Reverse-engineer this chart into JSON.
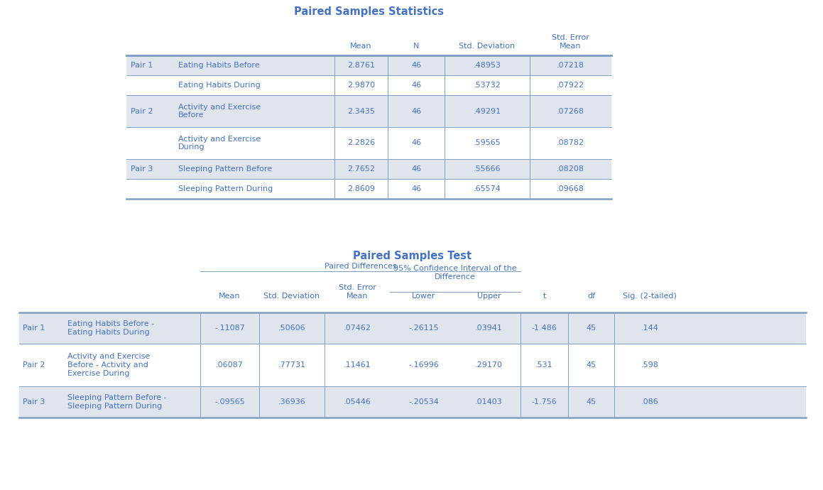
{
  "title1": "Paired Samples Statistics",
  "title2": "Paired Samples Test",
  "bg_color": "#ffffff",
  "text_color": "#4472C4",
  "shaded_color": "#E0E4EC",
  "white_color": "#ffffff",
  "border_color": "#7F9FC6",
  "thick_lw": 1.8,
  "thin_lw": 0.7,
  "stats_table": {
    "rows": [
      {
        "pair": "Pair 1",
        "label": "Eating Habits Before",
        "mean": "2.8761",
        "n": "46",
        "std_dev": ".48953",
        "std_err": ".07218",
        "shaded": true,
        "nlines": 1
      },
      {
        "pair": "",
        "label": "Eating Habits During",
        "mean": "2.9870",
        "n": "46",
        "std_dev": ".53732",
        "std_err": ".07922",
        "shaded": false,
        "nlines": 1
      },
      {
        "pair": "Pair 2",
        "label": "Activity and Exercise\nBefore",
        "mean": "2.3435",
        "n": "46",
        "std_dev": ".49291",
        "std_err": ".07268",
        "shaded": true,
        "nlines": 2
      },
      {
        "pair": "",
        "label": "Activity and Exercise\nDuring",
        "mean": "2.2826",
        "n": "46",
        "std_dev": ".59565",
        "std_err": ".08782",
        "shaded": false,
        "nlines": 2
      },
      {
        "pair": "Pair 3",
        "label": "Sleeping Pattern Before",
        "mean": "2.7652",
        "n": "46",
        "std_dev": ".55666",
        "std_err": ".08208",
        "shaded": true,
        "nlines": 1
      },
      {
        "pair": "",
        "label": "Sleeping Pattern During",
        "mean": "2.8609",
        "n": "46",
        "std_dev": ".65574",
        "std_err": ".09668",
        "shaded": false,
        "nlines": 1
      }
    ]
  },
  "test_table": {
    "rows": [
      {
        "pair": "Pair 1",
        "label": "Eating Habits Before -\nEating Habits During",
        "mean": "-.11087",
        "std_dev": ".50606",
        "std_err": ".07462",
        "lower": "-.26115",
        "upper": ".03941",
        "t": "-1.486",
        "df": "45",
        "sig": ".144",
        "shaded": true,
        "nlines": 2
      },
      {
        "pair": "Pair 2",
        "label": "Activity and Exercise\nBefore - Activity and\nExercise During",
        "mean": ".06087",
        "std_dev": ".77731",
        "std_err": ".11461",
        "lower": "-.16996",
        "upper": ".29170",
        "t": ".531",
        "df": "45",
        "sig": ".598",
        "shaded": false,
        "nlines": 3
      },
      {
        "pair": "Pair 3",
        "label": "Sleeping Pattern Before -\nSleeping Pattern During",
        "mean": "-.09565",
        "std_dev": ".36936",
        "std_err": ".05446",
        "lower": "-.20534",
        "upper": ".01403",
        "t": "-1.756",
        "df": "45",
        "sig": ".086",
        "shaded": true,
        "nlines": 2
      }
    ]
  }
}
